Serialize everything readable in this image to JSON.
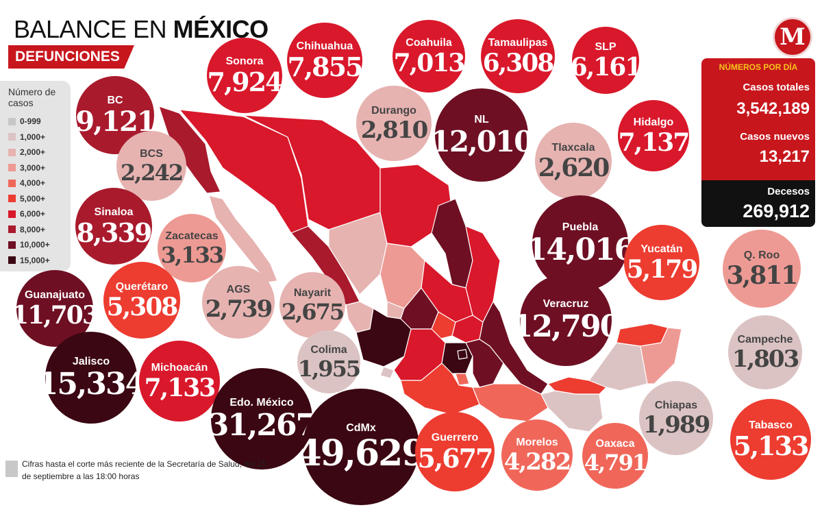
{
  "title": {
    "light": "BALANCE EN",
    "bold": "MÉXICO"
  },
  "subtitle": "DEFUNCIONES",
  "logo_letter": "M",
  "legend": {
    "title": "Número de casos",
    "items": [
      {
        "label": "0-999",
        "color": "#c7c7c7"
      },
      {
        "label": "1,000+",
        "color": "#dcc3c3"
      },
      {
        "label": "2,000+",
        "color": "#e6b3b1"
      },
      {
        "label": "3,000+",
        "color": "#ee9a94"
      },
      {
        "label": "4,000+",
        "color": "#f0675a"
      },
      {
        "label": "5,000+",
        "color": "#ed3c30"
      },
      {
        "label": "6,000+",
        "color": "#d9182b"
      },
      {
        "label": "8,000+",
        "color": "#a91a2d"
      },
      {
        "label": "10,000+",
        "color": "#6e0f23"
      },
      {
        "label": "15,000+",
        "color": "#3b0712"
      }
    ]
  },
  "states": [
    {
      "name": "BC",
      "value": "9,121",
      "color": "#a91a2d",
      "text": "#ffffff"
    },
    {
      "name": "Sonora",
      "value": "7,924",
      "color": "#d9182b",
      "text": "#ffffff"
    },
    {
      "name": "Chihuahua",
      "value": "7,855",
      "color": "#d9182b",
      "text": "#ffffff"
    },
    {
      "name": "Coahuila",
      "value": "7,013",
      "color": "#d9182b",
      "text": "#ffffff"
    },
    {
      "name": "Tamaulipas",
      "value": "6,308",
      "color": "#d9182b",
      "text": "#ffffff"
    },
    {
      "name": "SLP",
      "value": "6,161",
      "color": "#d9182b",
      "text": "#ffffff"
    },
    {
      "name": "Durango",
      "value": "2,810",
      "color": "#e6b3b1",
      "text": "#444444"
    },
    {
      "name": "NL",
      "value": "12,010",
      "color": "#6e0f23",
      "text": "#ffffff"
    },
    {
      "name": "Hidalgo",
      "value": "7,137",
      "color": "#d9182b",
      "text": "#ffffff"
    },
    {
      "name": "BCS",
      "value": "2,242",
      "color": "#e6b3b1",
      "text": "#444444"
    },
    {
      "name": "Tlaxcala",
      "value": "2,620",
      "color": "#e6b3b1",
      "text": "#444444"
    },
    {
      "name": "Sinaloa",
      "value": "8,339",
      "color": "#a91a2d",
      "text": "#ffffff"
    },
    {
      "name": "Zacatecas",
      "value": "3,133",
      "color": "#ee9a94",
      "text": "#444444"
    },
    {
      "name": "Puebla",
      "value": "14,016",
      "color": "#6e0f23",
      "text": "#ffffff"
    },
    {
      "name": "Yucatán",
      "value": "5,179",
      "color": "#ed3c30",
      "text": "#ffffff"
    },
    {
      "name": "Q. Roo",
      "value": "3,811",
      "color": "#ee9a94",
      "text": "#444444"
    },
    {
      "name": "Guanajuato",
      "value": "11,703",
      "color": "#6e0f23",
      "text": "#ffffff"
    },
    {
      "name": "Querétaro",
      "value": "5,308",
      "color": "#ed3c30",
      "text": "#ffffff"
    },
    {
      "name": "AGS",
      "value": "2,739",
      "color": "#e6b3b1",
      "text": "#444444"
    },
    {
      "name": "Nayarit",
      "value": "2,675",
      "color": "#e6b3b1",
      "text": "#444444"
    },
    {
      "name": "Veracruz",
      "value": "12,790",
      "color": "#6e0f23",
      "text": "#ffffff"
    },
    {
      "name": "Campeche",
      "value": "1,803",
      "color": "#dcc3c3",
      "text": "#444444"
    },
    {
      "name": "Jalisco",
      "value": "15,334",
      "color": "#3b0712",
      "text": "#ffffff"
    },
    {
      "name": "Michoacán",
      "value": "7,133",
      "color": "#d9182b",
      "text": "#ffffff"
    },
    {
      "name": "Colima",
      "value": "1,955",
      "color": "#dcc3c3",
      "text": "#444444"
    },
    {
      "name": "Edo. México",
      "value": "31,267",
      "color": "#3b0712",
      "text": "#ffffff"
    },
    {
      "name": "CdMx",
      "value": "49,629",
      "color": "#3b0712",
      "text": "#ffffff"
    },
    {
      "name": "Guerrero",
      "value": "5,677",
      "color": "#ed3c30",
      "text": "#ffffff"
    },
    {
      "name": "Morelos",
      "value": "4,282",
      "color": "#f0675a",
      "text": "#ffffff"
    },
    {
      "name": "Oaxaca",
      "value": "4,791",
      "color": "#f0675a",
      "text": "#ffffff"
    },
    {
      "name": "Chiapas",
      "value": "1,989",
      "color": "#dcc3c3",
      "text": "#444444"
    },
    {
      "name": "Tabasco",
      "value": "5,133",
      "color": "#ed3c30",
      "text": "#ffffff"
    }
  ],
  "stats": {
    "header": "NÚMEROS POR DÍA",
    "total_label": "Casos totales",
    "total_value": "3,542,189",
    "new_label": "Casos nuevos",
    "new_value": "13,217",
    "deaths_label": "Decesos",
    "deaths_value": "269,912"
  },
  "note": "Cifras hasta el corte más reciente de la Secretaría de Salud, del 15 de septiembre a las 18:00 horas"
}
